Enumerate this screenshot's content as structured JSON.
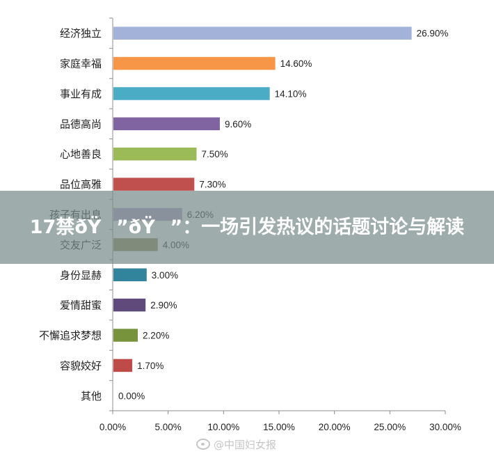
{
  "chart_data": {
    "type": "bar",
    "orientation": "horizontal",
    "categories": [
      "经济独立",
      "家庭幸福",
      "事业有成",
      "品德高尚",
      "心地善良",
      "品位高雅",
      "孩子有出息",
      "交友广泛",
      "身份显赫",
      "爱情甜蜜",
      "不懈追求梦想",
      "容貌姣好",
      "其他"
    ],
    "values": [
      26.9,
      14.6,
      14.1,
      9.6,
      7.5,
      7.3,
      6.2,
      4.0,
      3.0,
      2.9,
      2.2,
      1.7,
      0.0
    ],
    "value_labels": [
      "26.90%",
      "14.60%",
      "14.10%",
      "9.60%",
      "7.50%",
      "7.30%",
      "6.20%",
      "4.00%",
      "3.00%",
      "2.90%",
      "2.20%",
      "1.70%",
      "0.00%"
    ],
    "colors": [
      "#a3b2d8",
      "#f79646",
      "#4bacc6",
      "#8064a2",
      "#9bbb59",
      "#c0504d",
      "#b3a2c7",
      "#948a54",
      "#31849b",
      "#604a7b",
      "#77933c",
      "#be4b48",
      "#8064a2"
    ],
    "xlim": [
      0,
      30
    ],
    "ticks": [
      0,
      5,
      10,
      15,
      20,
      25,
      30
    ],
    "tick_labels": [
      "0.00%",
      "5.00%",
      "10.00%",
      "15.00%",
      "20.00%",
      "25.00%",
      "30.00%"
    ],
    "title": "",
    "xlabel": "",
    "ylabel": "",
    "grid": false,
    "legend": "none"
  },
  "overlay": {
    "title": "17禁ðŸ”ðŸ”：一场引发热议的话题讨论与解读"
  },
  "watermark": {
    "icon": "weibo-icon",
    "text": "@中国妇女报"
  }
}
